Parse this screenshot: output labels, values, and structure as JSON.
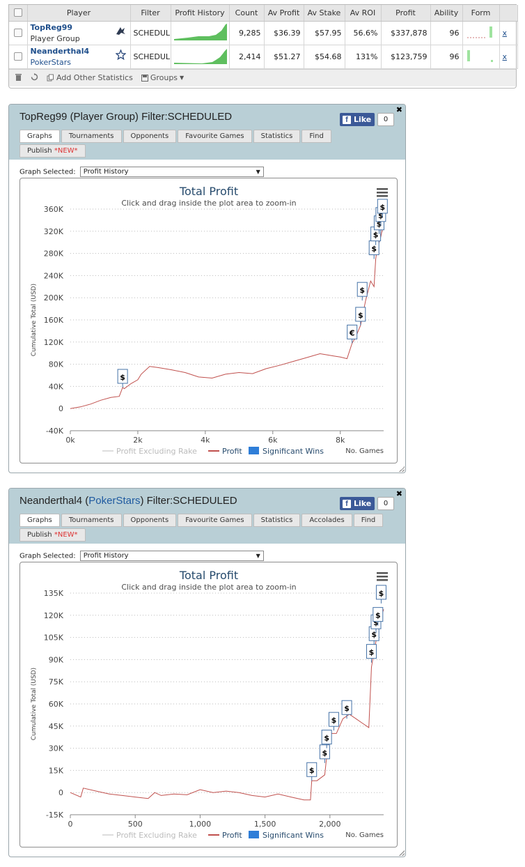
{
  "stats_table": {
    "headers": [
      "Player",
      "Filter",
      "Profit History",
      "Count",
      "Av Profit",
      "Av Stake",
      "Av ROI",
      "Profit",
      "Ability",
      "Form"
    ],
    "rows": [
      {
        "name": "TopReg99",
        "sub": "Player Group",
        "filter": "SCHEDUL",
        "count": "9,285",
        "av_profit": "$36.39",
        "av_stake": "$57.95",
        "av_roi": "56.6%",
        "profit": "$337,878",
        "ability": "96",
        "remove": "x"
      },
      {
        "name": "Neanderthal4",
        "sub": "PokerStars",
        "filter": "SCHEDUL",
        "count": "2,414",
        "av_profit": "$51.27",
        "av_stake": "$54.68",
        "av_roi": "131%",
        "profit": "$123,759",
        "ability": "96",
        "remove": "x"
      }
    ],
    "footer": {
      "add_label": "Add Other Statistics",
      "groups_label": "Groups"
    }
  },
  "panels": [
    {
      "title_main": "TopReg99",
      "title_paren": "(Player Group)",
      "title_filter": "Filter:SCHEDULED",
      "like_label": "Like",
      "like_count": "0",
      "tabs": [
        "Graphs",
        "Tournaments",
        "Opponents",
        "Favourite Games",
        "Statistics",
        "Find"
      ],
      "publish_label": "Publish",
      "new_label": "*NEW*",
      "graph_selected_label": "Graph Selected:",
      "graph_selected_value": "Profit History"
    },
    {
      "title_main": "Neanderthal4",
      "title_paren_pre": "(",
      "title_paren_link": "PokerStars",
      "title_paren_post": ")",
      "title_filter": "Filter:SCHEDULED",
      "like_label": "Like",
      "like_count": "0",
      "tabs": [
        "Graphs",
        "Tournaments",
        "Opponents",
        "Favourite Games",
        "Statistics",
        "Accolades",
        "Find"
      ],
      "publish_label": "Publish",
      "new_label": "*NEW*",
      "graph_selected_label": "Graph Selected:",
      "graph_selected_value": "Profit History"
    }
  ],
  "chart_data": [
    {
      "type": "line",
      "title": "Total Profit",
      "subtitle": "Click and drag inside the plot area to zoom-in",
      "ylabel": "Cumulative Total (USD)",
      "xlabel": "No. Games",
      "xlim": [
        0,
        9285
      ],
      "ylim": [
        -40000,
        360000
      ],
      "x_ticks": [
        0,
        2000,
        4000,
        6000,
        8000
      ],
      "x_tick_labels": [
        "0k",
        "2k",
        "4k",
        "6k",
        "8k"
      ],
      "y_ticks": [
        -40000,
        0,
        40000,
        80000,
        120000,
        160000,
        200000,
        240000,
        280000,
        320000,
        360000
      ],
      "y_tick_labels": [
        "-40K",
        "0",
        "40K",
        "80K",
        "120K",
        "160K",
        "200K",
        "240K",
        "280K",
        "320K",
        "360K"
      ],
      "legend": [
        "Profit Excluding Rake",
        "Profit",
        "Significant Wins"
      ],
      "series": [
        {
          "name": "Profit",
          "color": "#c0504d",
          "x": [
            0,
            300,
            600,
            900,
            1200,
            1450,
            1550,
            1600,
            1800,
            2000,
            2100,
            2350,
            2600,
            3000,
            3400,
            3800,
            4200,
            4600,
            5000,
            5400,
            5800,
            6200,
            6600,
            7000,
            7400,
            7800,
            8000,
            8200,
            8350,
            8450,
            8600,
            8750,
            8900,
            9000,
            9050,
            9100,
            9200,
            9285
          ],
          "y": [
            0,
            3000,
            8000,
            15000,
            20000,
            22000,
            38000,
            36000,
            45000,
            52000,
            62000,
            76000,
            74000,
            70000,
            65000,
            57000,
            55000,
            62000,
            65000,
            63000,
            72000,
            78000,
            85000,
            92000,
            99000,
            95000,
            93000,
            90000,
            118000,
            128000,
            150000,
            195000,
            230000,
            220000,
            270000,
            290000,
            310000,
            335000
          ]
        }
      ],
      "significant_wins": [
        {
          "x": 1550,
          "y": 38000,
          "symbol": "$"
        },
        {
          "x": 8350,
          "y": 118000,
          "symbol": "€"
        },
        {
          "x": 8600,
          "y": 150000,
          "symbol": "$"
        },
        {
          "x": 8650,
          "y": 195000,
          "symbol": "$"
        },
        {
          "x": 9000,
          "y": 270000,
          "symbol": "$"
        },
        {
          "x": 9050,
          "y": 295000,
          "symbol": "$"
        },
        {
          "x": 9150,
          "y": 315000,
          "symbol": "$"
        },
        {
          "x": 9200,
          "y": 330000,
          "symbol": "$"
        },
        {
          "x": 9250,
          "y": 345000,
          "symbol": "$"
        }
      ]
    },
    {
      "type": "line",
      "title": "Total Profit",
      "subtitle": "Click and drag inside the plot area to zoom-in",
      "ylabel": "Cumulative Total (USD)",
      "xlabel": "No. Games",
      "xlim": [
        0,
        2414
      ],
      "ylim": [
        -15000,
        135000
      ],
      "x_ticks": [
        0,
        500,
        1000,
        1500,
        2000
      ],
      "x_tick_labels": [
        "0",
        "500",
        "1,000",
        "1,500",
        "2,000"
      ],
      "y_ticks": [
        -15000,
        0,
        15000,
        30000,
        45000,
        60000,
        75000,
        90000,
        105000,
        120000,
        135000
      ],
      "y_tick_labels": [
        "-15K",
        "0",
        "15K",
        "30K",
        "45K",
        "60K",
        "75K",
        "90K",
        "105K",
        "120K",
        "135K"
      ],
      "legend": [
        "Profit Excluding Rake",
        "Profit",
        "Significant Wins"
      ],
      "series": [
        {
          "name": "Profit",
          "color": "#c0504d",
          "x": [
            0,
            80,
            100,
            200,
            300,
            400,
            500,
            600,
            650,
            700,
            800,
            900,
            1000,
            1100,
            1200,
            1300,
            1400,
            1500,
            1600,
            1700,
            1800,
            1850,
            1860,
            1900,
            1960,
            1970,
            2000,
            2050,
            2100,
            2150,
            2200,
            2250,
            2300,
            2320,
            2340,
            2360,
            2380,
            2414
          ],
          "y": [
            0,
            -3000,
            3000,
            1000,
            -1000,
            -2000,
            -3000,
            -4000,
            0,
            -2000,
            -1000,
            -1500,
            2000,
            0,
            1000,
            0,
            -2000,
            -3000,
            -1000,
            -3000,
            -5000,
            -5000,
            8000,
            8000,
            12000,
            20000,
            40000,
            40000,
            50000,
            53000,
            50000,
            47000,
            44000,
            85000,
            95000,
            105000,
            115000,
            124000
          ]
        }
      ],
      "significant_wins": [
        {
          "x": 1860,
          "y": 8000,
          "symbol": "$"
        },
        {
          "x": 1960,
          "y": 20000,
          "symbol": "$"
        },
        {
          "x": 1975,
          "y": 30000,
          "symbol": "$"
        },
        {
          "x": 2030,
          "y": 42000,
          "symbol": "$"
        },
        {
          "x": 2130,
          "y": 50000,
          "symbol": "$"
        },
        {
          "x": 2320,
          "y": 88000,
          "symbol": "$"
        },
        {
          "x": 2340,
          "y": 100000,
          "symbol": "$"
        },
        {
          "x": 2355,
          "y": 108000,
          "symbol": "$"
        },
        {
          "x": 2370,
          "y": 113000,
          "symbol": "$"
        },
        {
          "x": 2395,
          "y": 128000,
          "symbol": "$"
        }
      ]
    }
  ]
}
